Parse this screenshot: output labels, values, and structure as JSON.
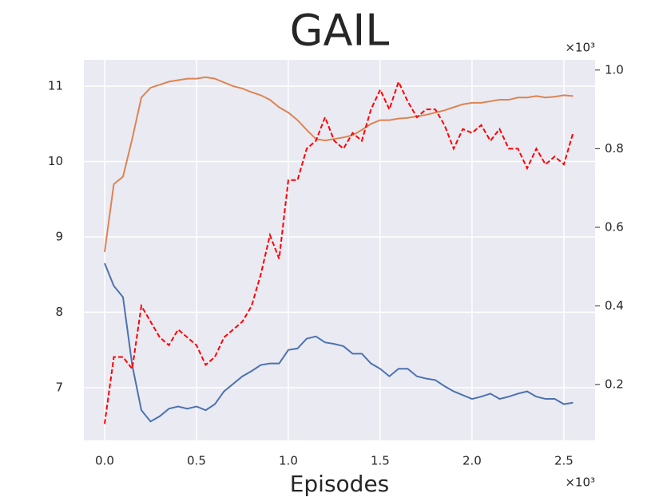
{
  "chart_data": {
    "type": "line",
    "title": "GAIL",
    "x_label": "Episodes",
    "x_offset_label": "×10³",
    "y2_offset_label": "×10³",
    "x": [
      0,
      0.05,
      0.1,
      0.15,
      0.2,
      0.25,
      0.3,
      0.35,
      0.4,
      0.45,
      0.5,
      0.55,
      0.6,
      0.65,
      0.7,
      0.75,
      0.8,
      0.85,
      0.9,
      0.95,
      1.0,
      1.05,
      1.1,
      1.15,
      1.2,
      1.25,
      1.3,
      1.35,
      1.4,
      1.45,
      1.5,
      1.55,
      1.6,
      1.65,
      1.7,
      1.75,
      1.8,
      1.85,
      1.9,
      1.95,
      2.0,
      2.05,
      2.1,
      2.15,
      2.2,
      2.25,
      2.3,
      2.35,
      2.4,
      2.45,
      2.5,
      2.55
    ],
    "series": [
      {
        "color": "#4c72b0",
        "dash": false,
        "axis": "y",
        "values": [
          8.65,
          8.35,
          8.2,
          7.3,
          6.7,
          6.55,
          6.62,
          6.72,
          6.75,
          6.72,
          6.75,
          6.7,
          6.78,
          6.95,
          7.05,
          7.15,
          7.22,
          7.3,
          7.32,
          7.32,
          7.5,
          7.52,
          7.65,
          7.68,
          7.6,
          7.58,
          7.55,
          7.45,
          7.45,
          7.32,
          7.25,
          7.15,
          7.25,
          7.25,
          7.15,
          7.12,
          7.1,
          7.02,
          6.95,
          6.9,
          6.85,
          6.88,
          6.92,
          6.85,
          6.88,
          6.92,
          6.95,
          6.88,
          6.85,
          6.85,
          6.78,
          6.8
        ]
      },
      {
        "color": "#dd8452",
        "dash": false,
        "axis": "y",
        "values": [
          8.8,
          9.7,
          9.8,
          10.3,
          10.85,
          10.98,
          11.02,
          11.06,
          11.08,
          11.1,
          11.1,
          11.12,
          11.1,
          11.05,
          11.0,
          10.97,
          10.92,
          10.88,
          10.82,
          10.72,
          10.65,
          10.55,
          10.42,
          10.3,
          10.28,
          10.3,
          10.32,
          10.35,
          10.42,
          10.5,
          10.55,
          10.55,
          10.57,
          10.58,
          10.6,
          10.62,
          10.65,
          10.68,
          10.72,
          10.76,
          10.78,
          10.78,
          10.8,
          10.82,
          10.82,
          10.85,
          10.85,
          10.87,
          10.85,
          10.86,
          10.88,
          10.87
        ]
      },
      {
        "color": "#ff0000",
        "dash": true,
        "axis": "y2",
        "values": [
          0.1,
          0.27,
          0.27,
          0.24,
          0.4,
          0.36,
          0.32,
          0.3,
          0.34,
          0.32,
          0.3,
          0.25,
          0.27,
          0.32,
          0.34,
          0.36,
          0.4,
          0.48,
          0.58,
          0.52,
          0.72,
          0.72,
          0.8,
          0.82,
          0.88,
          0.82,
          0.8,
          0.84,
          0.82,
          0.9,
          0.95,
          0.9,
          0.97,
          0.92,
          0.88,
          0.9,
          0.9,
          0.86,
          0.8,
          0.85,
          0.84,
          0.86,
          0.82,
          0.85,
          0.8,
          0.8,
          0.75,
          0.8,
          0.76,
          0.78,
          0.76,
          0.84
        ]
      }
    ],
    "xlim": [
      -0.113,
      2.67
    ],
    "xticks": [
      {
        "value": 0,
        "label": "0.0"
      },
      0.5,
      {
        "value": 1,
        "label": "1.0"
      },
      1.5,
      {
        "value": 2,
        "label": "2.0"
      },
      2.5
    ],
    "ylim": [
      6.3,
      11.35
    ],
    "yticks": [
      7,
      8,
      9,
      10,
      11
    ],
    "y2lim": [
      0.058,
      1.026
    ],
    "y2ticks": [
      0.2,
      0.4,
      0.6,
      0.8,
      {
        "value": 1,
        "label": "1.0"
      }
    ],
    "grid": true
  }
}
